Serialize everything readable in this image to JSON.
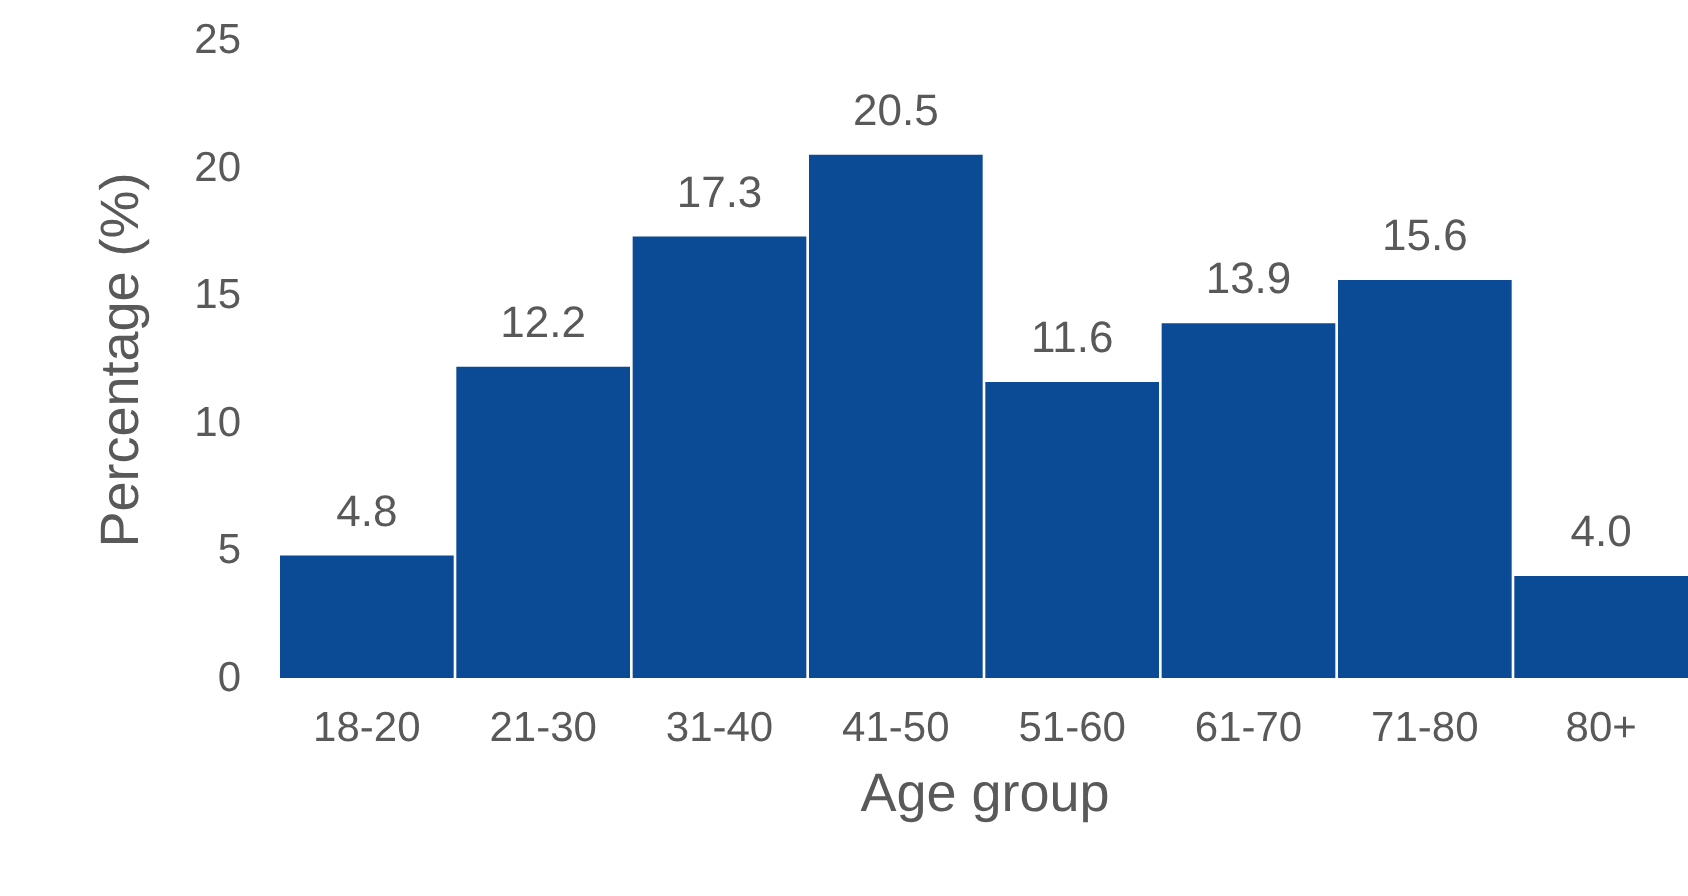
{
  "chart_data": {
    "type": "bar",
    "xlabel": "Age group",
    "ylabel": "Percentage (%)",
    "categories": [
      "18-20",
      "21-30",
      "31-40",
      "41-50",
      "51-60",
      "61-70",
      "71-80",
      "80+"
    ],
    "values": [
      4.8,
      12.2,
      17.3,
      20.5,
      11.6,
      13.9,
      15.6,
      4.0
    ],
    "value_labels": [
      "4.8",
      "12.2",
      "17.3",
      "20.5",
      "11.6",
      "13.9",
      "15.6",
      "4.0"
    ],
    "color": "#0b4a95",
    "ylim": [
      0,
      25
    ],
    "yticks": [
      0,
      5,
      10,
      15,
      20,
      25
    ],
    "grid": false
  }
}
